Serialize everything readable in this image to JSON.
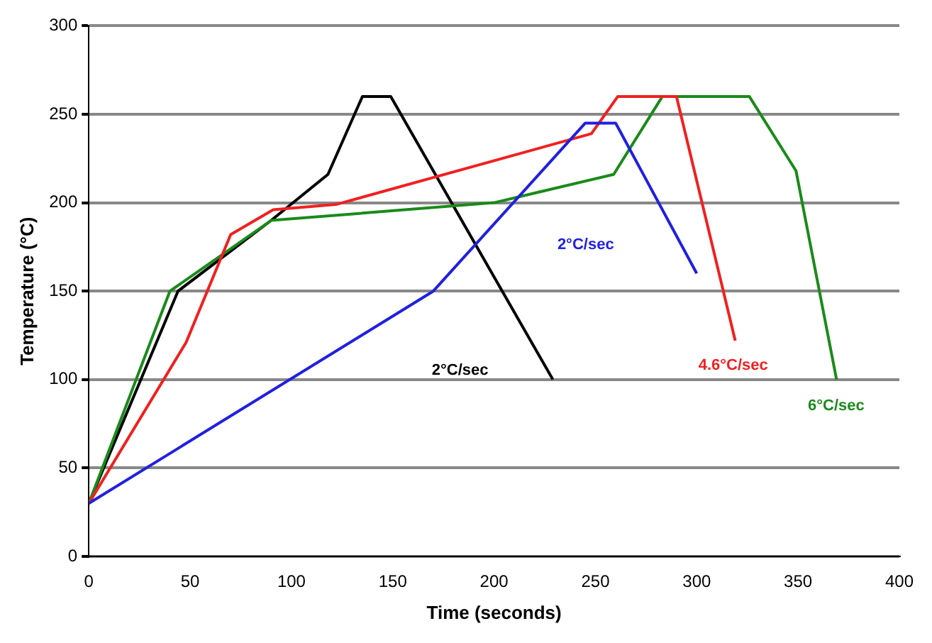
{
  "chart_data": {
    "type": "line",
    "xlabel": "Time (seconds)",
    "ylabel": "Temperature (°C)",
    "xlim": [
      0,
      400
    ],
    "xticks": [
      0,
      50,
      100,
      150,
      200,
      250,
      300,
      350,
      400
    ],
    "ylim": [
      0,
      300
    ],
    "yticks": [
      0,
      50,
      100,
      150,
      200,
      250,
      300
    ],
    "grid": "y",
    "marker": "none",
    "line_style": "solid",
    "series": [
      {
        "color": "#2020e0",
        "x": [
          0,
          170,
          245,
          260,
          300
        ],
        "values": [
          30,
          150,
          245,
          245,
          160
        ]
      },
      {
        "color": "#f02020",
        "x": [
          0,
          48,
          70,
          91,
          122,
          248,
          261,
          290,
          319
        ],
        "values": [
          30,
          121,
          182,
          196,
          199,
          239,
          260,
          260,
          122
        ]
      },
      {
        "color": "#1a8a1a",
        "x": [
          0,
          40,
          90,
          200,
          259,
          283,
          326,
          349,
          369
        ],
        "values": [
          30,
          150,
          190,
          200,
          216,
          260,
          260,
          218,
          100
        ]
      },
      {
        "color": "#000000",
        "x": [
          0,
          44,
          90,
          118,
          135,
          149,
          229
        ],
        "values": [
          30,
          150,
          190,
          216,
          260,
          260,
          100
        ]
      }
    ],
    "annotations": [
      "2°C/sec",
      "4.6°C/sec",
      "6°C/sec",
      "2°C/sec"
    ]
  }
}
